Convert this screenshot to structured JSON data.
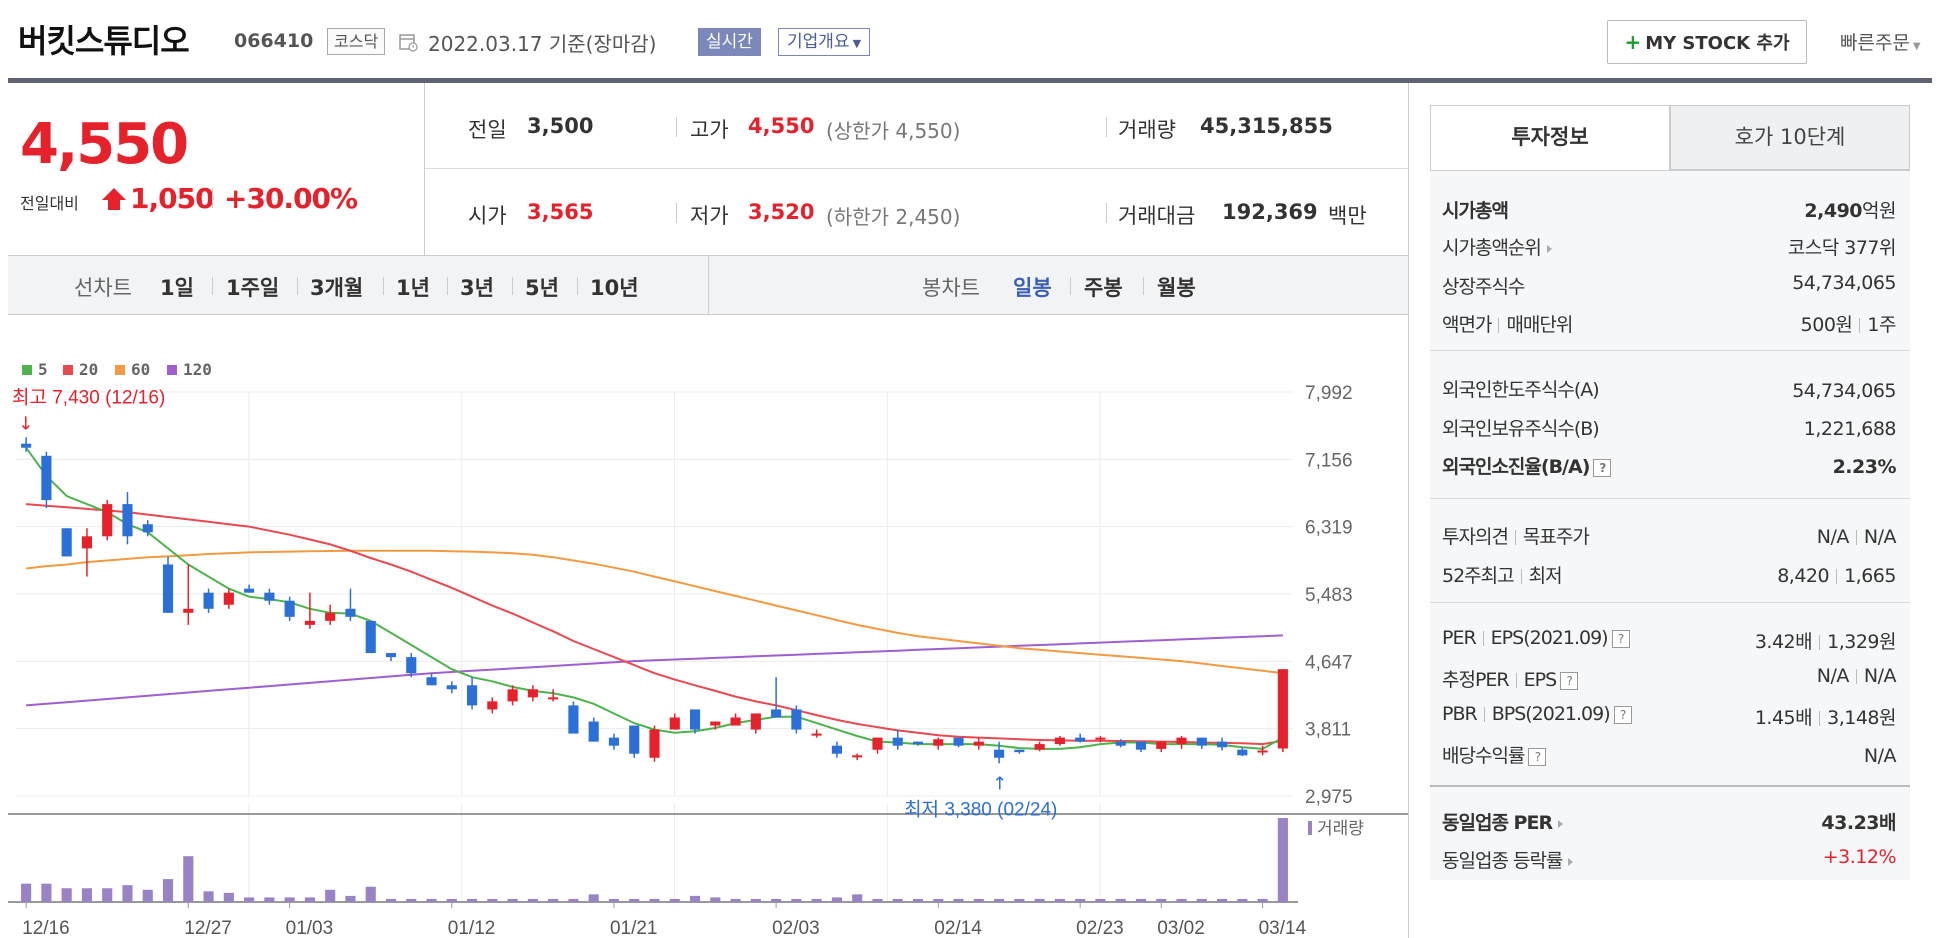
{
  "header": {
    "name": "버킷스튜디오",
    "code": "066410",
    "market": "코스닥",
    "date_text": "2022.03.17  기준(장마감)",
    "realtime_label": "실시간",
    "corp_info_label": "기업개요",
    "mystock_label": "MY STOCK 추가",
    "quick_order_label": "빠른주문"
  },
  "price": {
    "current": "4,550",
    "change_label": "전일대비",
    "change_amount": "1,050",
    "change_rate": "+30.00%",
    "direction": "up"
  },
  "quote": {
    "prev_close_label": "전일",
    "prev_close": "3,500",
    "open_label": "시가",
    "open": "3,565",
    "high_label": "고가",
    "high": "4,550",
    "high_limit_text": "(상한가 4,550)",
    "low_label": "저가",
    "low": "3,520",
    "low_limit_text": "(하한가 2,450)",
    "volume_label": "거래량",
    "volume": "45,315,855",
    "trade_value_label": "거래대금",
    "trade_value": "192,369",
    "trade_value_unit": "백만"
  },
  "period_tabs": {
    "line_chart_label": "선차트",
    "line_periods": [
      "1일",
      "1주일",
      "3개월",
      "1년",
      "3년",
      "5년",
      "10년"
    ],
    "candle_chart_label": "봉차트",
    "candle_periods": [
      "일봉",
      "주봉",
      "월봉"
    ],
    "active_candle": "일봉"
  },
  "chart_data": {
    "type": "candlestick",
    "legend": [
      {
        "name": "5",
        "color": "#4db34d"
      },
      {
        "name": "20",
        "color": "#e8494f"
      },
      {
        "name": "60",
        "color": "#f29a42"
      },
      {
        "name": "120",
        "color": "#a05fcf"
      }
    ],
    "y_ticks": [
      "7,992",
      "7,156",
      "6,319",
      "5,483",
      "4,647",
      "3,811",
      "2,975"
    ],
    "ylim": [
      2975,
      7992
    ],
    "x_labels": [
      "12/16",
      "12/27",
      "01/03",
      "01/12",
      "01/21",
      "02/03",
      "02/14",
      "02/23",
      "03/02",
      "03/14"
    ],
    "max_annotation": "최고 7,430 (12/16)",
    "min_annotation": "최저 3,380 (02/24)",
    "volume_label": "거래량",
    "candles": [
      {
        "o": 7350,
        "h": 7430,
        "l": 7250,
        "c": 7300
      },
      {
        "o": 7200,
        "h": 7250,
        "l": 6550,
        "c": 6650
      },
      {
        "o": 6300,
        "h": 6300,
        "l": 5950,
        "c": 5950
      },
      {
        "o": 6050,
        "h": 6300,
        "l": 5700,
        "c": 6200
      },
      {
        "o": 6200,
        "h": 6650,
        "l": 6150,
        "c": 6600
      },
      {
        "o": 6600,
        "h": 6750,
        "l": 6100,
        "c": 6200
      },
      {
        "o": 6350,
        "h": 6400,
        "l": 6200,
        "c": 6250
      },
      {
        "o": 5850,
        "h": 5950,
        "l": 5250,
        "c": 5250
      },
      {
        "o": 5250,
        "h": 5850,
        "l": 5100,
        "c": 5300
      },
      {
        "o": 5500,
        "h": 5550,
        "l": 5250,
        "c": 5300
      },
      {
        "o": 5350,
        "h": 5550,
        "l": 5300,
        "c": 5500
      },
      {
        "o": 5550,
        "h": 5600,
        "l": 5500,
        "c": 5500
      },
      {
        "o": 5500,
        "h": 5550,
        "l": 5350,
        "c": 5400
      },
      {
        "o": 5400,
        "h": 5450,
        "l": 5150,
        "c": 5200
      },
      {
        "o": 5100,
        "h": 5500,
        "l": 5050,
        "c": 5150
      },
      {
        "o": 5150,
        "h": 5350,
        "l": 5100,
        "c": 5250
      },
      {
        "o": 5300,
        "h": 5550,
        "l": 5150,
        "c": 5200
      },
      {
        "o": 5150,
        "h": 5150,
        "l": 4750,
        "c": 4750
      },
      {
        "o": 4750,
        "h": 4750,
        "l": 4650,
        "c": 4700
      },
      {
        "o": 4700,
        "h": 4750,
        "l": 4450,
        "c": 4500
      },
      {
        "o": 4450,
        "h": 4500,
        "l": 4350,
        "c": 4350
      },
      {
        "o": 4350,
        "h": 4400,
        "l": 4250,
        "c": 4300
      },
      {
        "o": 4350,
        "h": 4450,
        "l": 4050,
        "c": 4100
      },
      {
        "o": 4050,
        "h": 4200,
        "l": 4000,
        "c": 4150
      },
      {
        "o": 4150,
        "h": 4350,
        "l": 4100,
        "c": 4300
      },
      {
        "o": 4200,
        "h": 4350,
        "l": 4150,
        "c": 4300
      },
      {
        "o": 4200,
        "h": 4300,
        "l": 4150,
        "c": 4200
      },
      {
        "o": 4100,
        "h": 4150,
        "l": 3750,
        "c": 3750
      },
      {
        "o": 3900,
        "h": 3950,
        "l": 3650,
        "c": 3650
      },
      {
        "o": 3700,
        "h": 3750,
        "l": 3550,
        "c": 3600
      },
      {
        "o": 3850,
        "h": 3850,
        "l": 3450,
        "c": 3500
      },
      {
        "o": 3450,
        "h": 3850,
        "l": 3400,
        "c": 3800
      },
      {
        "o": 3800,
        "h": 4000,
        "l": 3800,
        "c": 3950
      },
      {
        "o": 4050,
        "h": 4050,
        "l": 3750,
        "c": 3800
      },
      {
        "o": 3850,
        "h": 3900,
        "l": 3800,
        "c": 3900
      },
      {
        "o": 3850,
        "h": 4000,
        "l": 3850,
        "c": 3950
      },
      {
        "o": 3800,
        "h": 4000,
        "l": 3750,
        "c": 4000
      },
      {
        "o": 4050,
        "h": 4450,
        "l": 4000,
        "c": 3950
      },
      {
        "o": 4050,
        "h": 4100,
        "l": 3750,
        "c": 3800
      },
      {
        "o": 3750,
        "h": 3800,
        "l": 3700,
        "c": 3750
      },
      {
        "o": 3600,
        "h": 3650,
        "l": 3450,
        "c": 3500
      },
      {
        "o": 3480,
        "h": 3500,
        "l": 3420,
        "c": 3480
      },
      {
        "o": 3550,
        "h": 3700,
        "l": 3500,
        "c": 3700
      },
      {
        "o": 3700,
        "h": 3800,
        "l": 3550,
        "c": 3600
      },
      {
        "o": 3650,
        "h": 3650,
        "l": 3600,
        "c": 3620
      },
      {
        "o": 3600,
        "h": 3700,
        "l": 3550,
        "c": 3680
      },
      {
        "o": 3700,
        "h": 3700,
        "l": 3580,
        "c": 3600
      },
      {
        "o": 3600,
        "h": 3700,
        "l": 3550,
        "c": 3650
      },
      {
        "o": 3550,
        "h": 3650,
        "l": 3380,
        "c": 3450
      },
      {
        "o": 3550,
        "h": 3550,
        "l": 3500,
        "c": 3520
      },
      {
        "o": 3550,
        "h": 3650,
        "l": 3530,
        "c": 3620
      },
      {
        "o": 3620,
        "h": 3720,
        "l": 3600,
        "c": 3700
      },
      {
        "o": 3700,
        "h": 3750,
        "l": 3640,
        "c": 3650
      },
      {
        "o": 3680,
        "h": 3720,
        "l": 3640,
        "c": 3700
      },
      {
        "o": 3650,
        "h": 3680,
        "l": 3580,
        "c": 3600
      },
      {
        "o": 3650,
        "h": 3650,
        "l": 3520,
        "c": 3550
      },
      {
        "o": 3560,
        "h": 3660,
        "l": 3520,
        "c": 3650
      },
      {
        "o": 3620,
        "h": 3720,
        "l": 3560,
        "c": 3700
      },
      {
        "o": 3700,
        "h": 3700,
        "l": 3560,
        "c": 3600
      },
      {
        "o": 3650,
        "h": 3700,
        "l": 3540,
        "c": 3580
      },
      {
        "o": 3550,
        "h": 3580,
        "l": 3470,
        "c": 3480
      },
      {
        "o": 3520,
        "h": 3600,
        "l": 3480,
        "c": 3540
      },
      {
        "o": 3565,
        "h": 4550,
        "l": 3520,
        "c": 4550
      }
    ],
    "ma5": [
      7300,
      6950,
      6700,
      6600,
      6500,
      6350,
      6250,
      6050,
      5850,
      5700,
      5550,
      5450,
      5420,
      5380,
      5300,
      5250,
      5240,
      5150,
      5000,
      4850,
      4700,
      4550,
      4450,
      4400,
      4330,
      4280,
      4250,
      4200,
      4120,
      4000,
      3880,
      3800,
      3760,
      3780,
      3820,
      3880,
      3920,
      3960,
      3960,
      3880,
      3800,
      3720,
      3650,
      3640,
      3620,
      3620,
      3620,
      3620,
      3600,
      3570,
      3560,
      3560,
      3580,
      3620,
      3640,
      3640,
      3620,
      3620,
      3620,
      3610,
      3580,
      3560,
      3700
    ],
    "ma20": [
      6600,
      6580,
      6560,
      6540,
      6520,
      6500,
      6470,
      6440,
      6410,
      6380,
      6350,
      6320,
      6270,
      6220,
      6160,
      6100,
      6020,
      5930,
      5850,
      5760,
      5660,
      5560,
      5450,
      5340,
      5240,
      5130,
      5020,
      4900,
      4800,
      4700,
      4600,
      4500,
      4420,
      4350,
      4280,
      4210,
      4150,
      4100,
      4040,
      3980,
      3920,
      3870,
      3830,
      3790,
      3760,
      3730,
      3710,
      3700,
      3690,
      3680,
      3670,
      3665,
      3660,
      3660,
      3658,
      3655,
      3650,
      3645,
      3640,
      3635,
      3630,
      3620,
      3660
    ],
    "ma60": [
      5800,
      5830,
      5850,
      5880,
      5900,
      5920,
      5940,
      5950,
      5965,
      5980,
      5990,
      6000,
      6005,
      6010,
      6015,
      6018,
      6020,
      6020,
      6020,
      6020,
      6020,
      6015,
      6010,
      6000,
      5990,
      5970,
      5940,
      5900,
      5860,
      5810,
      5760,
      5700,
      5640,
      5580,
      5520,
      5460,
      5400,
      5340,
      5280,
      5220,
      5160,
      5100,
      5050,
      5000,
      4960,
      4930,
      4900,
      4870,
      4840,
      4810,
      4790,
      4770,
      4750,
      4730,
      4710,
      4690,
      4670,
      4650,
      4620,
      4590,
      4560,
      4530,
      4500
    ],
    "ma120": [
      4100,
      4120,
      4140,
      4160,
      4180,
      4200,
      4220,
      4240,
      4260,
      4280,
      4300,
      4320,
      4340,
      4360,
      4380,
      4400,
      4420,
      4440,
      4460,
      4480,
      4500,
      4515,
      4530,
      4545,
      4560,
      4575,
      4590,
      4605,
      4620,
      4635,
      4650,
      4660,
      4670,
      4680,
      4690,
      4700,
      4710,
      4720,
      4730,
      4740,
      4750,
      4760,
      4770,
      4780,
      4790,
      4800,
      4810,
      4820,
      4830,
      4840,
      4850,
      4860,
      4870,
      4880,
      4890,
      4900,
      4910,
      4920,
      4930,
      4940,
      4950,
      4960,
      4970
    ],
    "volume": [
      12,
      12,
      9,
      9,
      9,
      11,
      8,
      15,
      30,
      7,
      6,
      3,
      3,
      3,
      3,
      8,
      4,
      10,
      2,
      2,
      2,
      2,
      2,
      2,
      2,
      2,
      2,
      2,
      5,
      2,
      2,
      2,
      2,
      4,
      3,
      2,
      2,
      2,
      2,
      2,
      3,
      5,
      2,
      2,
      2,
      2,
      2,
      2,
      2,
      2,
      2,
      2,
      2,
      2,
      2,
      2,
      2,
      2,
      2,
      2,
      2,
      2,
      55
    ]
  },
  "invest_info": {
    "tab_invest": "투자정보",
    "tab_hoga": "호가 10단계",
    "market_cap_label": "시가총액",
    "market_cap": "2,490",
    "market_cap_unit": "억원",
    "market_cap_rank_label": "시가총액순위",
    "market_cap_rank": "코스닥 377위",
    "listed_shares_label": "상장주식수",
    "listed_shares": "54,734,065",
    "par_label": "액면가",
    "unit_label": "매매단위",
    "par_value": "500원",
    "trade_unit": "1주",
    "foreign_limit_label": "외국인한도주식수(A)",
    "foreign_limit": "54,734,065",
    "foreign_hold_label": "외국인보유주식수(B)",
    "foreign_hold": "1,221,688",
    "foreign_ratio_label": "외국인소진율(B/A)",
    "foreign_ratio": "2.23%",
    "opinion_label": "투자의견",
    "target_label": "목표주가",
    "opinion": "N/A",
    "target": "N/A",
    "week52_high_label": "52주최고",
    "week52_low_label": "최저",
    "week52_high": "8,420",
    "week52_low": "1,665",
    "per_label": "PER",
    "eps_label": "EPS(2021.09)",
    "per": "3.42배",
    "eps": "1,329원",
    "est_per_label": "추정PER",
    "est_eps_label": "EPS",
    "est_per": "N/A",
    "est_eps": "N/A",
    "pbr_label": "PBR",
    "bps_label": "BPS(2021.09)",
    "pbr": "1.45배",
    "bps": "3,148원",
    "dividend_label": "배당수익률",
    "dividend": "N/A",
    "sector_per_label": "동일업종 PER",
    "sector_per": "43.23배",
    "sector_change_label": "동일업종 등락률",
    "sector_change": "+3.12%",
    "help_glyph": "?"
  }
}
